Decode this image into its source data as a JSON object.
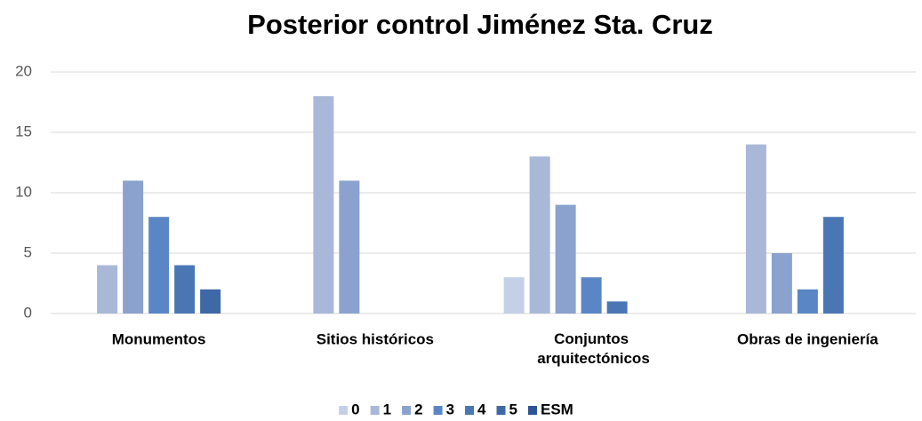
{
  "chart_data": {
    "type": "bar",
    "title": "Posterior control Jiménez Sta. Cruz",
    "categories": [
      "Monumentos",
      "Sitios históricos",
      "Conjuntos arquitectónicos",
      "Obras de ingeniería"
    ],
    "series": [
      {
        "name": "0",
        "color": "#c5d0e6",
        "values": [
          0,
          0,
          3,
          0
        ]
      },
      {
        "name": "1",
        "color": "#a9b8d8",
        "values": [
          4,
          18,
          13,
          14
        ]
      },
      {
        "name": "2",
        "color": "#8aa2cd",
        "values": [
          11,
          11,
          9,
          5
        ]
      },
      {
        "name": "3",
        "color": "#5b86c5",
        "values": [
          8,
          0,
          3,
          2
        ]
      },
      {
        "name": "4",
        "color": "#4a77b4",
        "values": [
          4,
          0,
          1,
          8
        ]
      },
      {
        "name": "5",
        "color": "#3f68a6",
        "values": [
          2,
          0,
          0,
          0
        ]
      },
      {
        "name": "ESM",
        "color": "#2f5496",
        "values": [
          0,
          0,
          0,
          0
        ]
      }
    ],
    "ylim": [
      0,
      20
    ],
    "yticks": [
      0,
      5,
      10,
      15,
      20
    ],
    "grid": true,
    "legend": "bottom"
  }
}
